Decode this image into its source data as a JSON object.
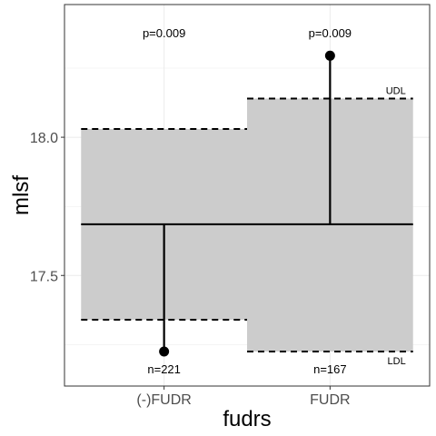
{
  "chart_data": {
    "type": "anom",
    "title": "",
    "xlabel": "fudrs",
    "ylabel": "mlsf",
    "categories": [
      "(-)FUDR",
      "FUDR"
    ],
    "center_line": 17.685,
    "groups": [
      {
        "label": "(-)FUDR",
        "value": 17.225,
        "udl": 18.03,
        "ldl": 17.34,
        "n_label": "n=221",
        "p_label": "p=0.009"
      },
      {
        "label": "FUDR",
        "value": 18.295,
        "udl": 18.14,
        "ldl": 17.225,
        "n_label": "n=167",
        "p_label": "p=0.009"
      }
    ],
    "udl_label": "UDL",
    "ldl_label": "LDL",
    "ylim": [
      17.1,
      18.48
    ],
    "yticks": [
      17.5,
      18.0
    ],
    "ytick_labels": [
      "17.5",
      "18.0"
    ],
    "grid": true,
    "colors": {
      "band": "#cccccc",
      "line": "#000000",
      "grid": "#ebebeb",
      "border": "#333333"
    }
  }
}
